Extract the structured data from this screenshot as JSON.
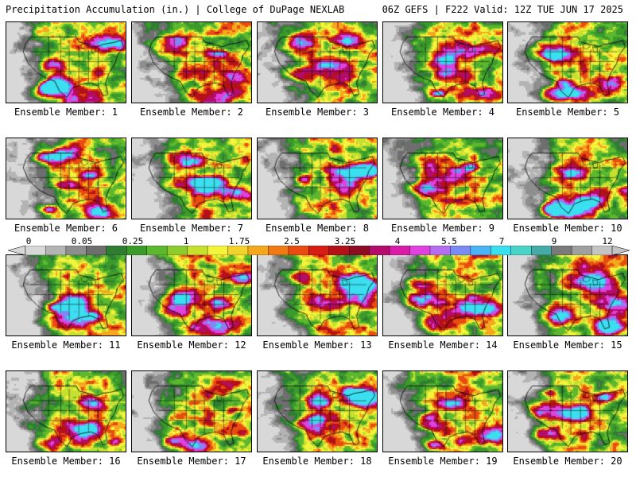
{
  "header": {
    "left_title": "Precipitation Accumulation (in.) | College of DuPage NEXLAB",
    "right_title": "06Z GEFS | F222 Valid: 12Z TUE JUN 17 2025"
  },
  "colorbar": {
    "labels": [
      "0",
      "0.05",
      "0.25",
      "1",
      "1.75",
      "2.5",
      "3.25",
      "4",
      "5.5",
      "7",
      "9",
      "12"
    ],
    "colors": [
      "#d8d8d8",
      "#b4b4b4",
      "#8e8e8e",
      "#6e6e6e",
      "#2e7d32",
      "#3a9a2a",
      "#5cb82e",
      "#8ccc2e",
      "#c6e030",
      "#f4f43c",
      "#f4d22e",
      "#f4a81e",
      "#f07a14",
      "#e84c10",
      "#d81e14",
      "#b4101a",
      "#8c0c24",
      "#b40c6a",
      "#d81ea8",
      "#e042e0",
      "#b46ef0",
      "#7a8cf4",
      "#4ab4f4",
      "#3ae0f0",
      "#4ad4c8",
      "#46aaa8",
      "#7a7a7a",
      "#a0a0a0",
      "#c4c4c4"
    ]
  },
  "panels": [
    {
      "label": "Ensemble Member: 1",
      "seed": 11
    },
    {
      "label": "Ensemble Member: 2",
      "seed": 23
    },
    {
      "label": "Ensemble Member: 3",
      "seed": 37
    },
    {
      "label": "Ensemble Member: 4",
      "seed": 41
    },
    {
      "label": "Ensemble Member: 5",
      "seed": 53
    },
    {
      "label": "Ensemble Member: 6",
      "seed": 67
    },
    {
      "label": "Ensemble Member: 7",
      "seed": 71
    },
    {
      "label": "Ensemble Member: 8",
      "seed": 83
    },
    {
      "label": "Ensemble Member: 9",
      "seed": 97
    },
    {
      "label": "Ensemble Member: 10",
      "seed": 101
    },
    {
      "label": "Ensemble Member: 11",
      "seed": 113
    },
    {
      "label": "Ensemble Member: 12",
      "seed": 127
    },
    {
      "label": "Ensemble Member: 13",
      "seed": 131
    },
    {
      "label": "Ensemble Member: 14",
      "seed": 149
    },
    {
      "label": "Ensemble Member: 15",
      "seed": 151
    },
    {
      "label": "Ensemble Member: 16",
      "seed": 163
    },
    {
      "label": "Ensemble Member: 17",
      "seed": 173
    },
    {
      "label": "Ensemble Member: 18",
      "seed": 181
    },
    {
      "label": "Ensemble Member: 19",
      "seed": 191
    },
    {
      "label": "Ensemble Member: 20",
      "seed": 199
    }
  ]
}
